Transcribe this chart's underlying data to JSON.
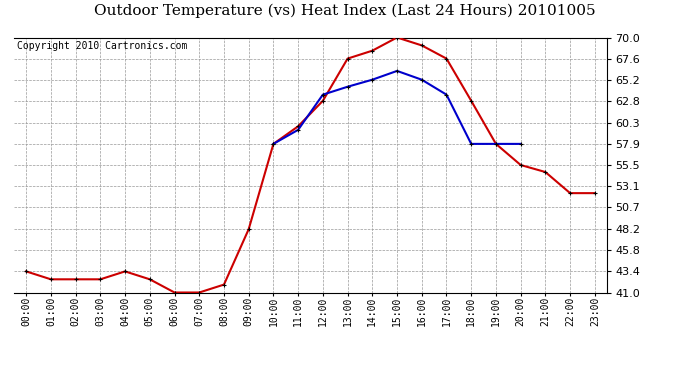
{
  "title": "Outdoor Temperature (vs) Heat Index (Last 24 Hours) 20101005",
  "copyright": "Copyright 2010 Cartronics.com",
  "hours": [
    "00:00",
    "01:00",
    "02:00",
    "03:00",
    "04:00",
    "05:00",
    "06:00",
    "07:00",
    "08:00",
    "09:00",
    "10:00",
    "11:00",
    "12:00",
    "13:00",
    "14:00",
    "15:00",
    "16:00",
    "17:00",
    "18:00",
    "19:00",
    "20:00",
    "21:00",
    "22:00",
    "23:00"
  ],
  "temp": [
    43.4,
    42.5,
    42.5,
    42.5,
    43.4,
    42.5,
    41.0,
    41.0,
    41.9,
    48.2,
    57.9,
    59.9,
    62.8,
    67.6,
    68.5,
    70.0,
    69.1,
    67.6,
    62.8,
    57.9,
    55.5,
    54.7,
    52.3,
    52.3
  ],
  "heat_index": [
    null,
    null,
    null,
    null,
    null,
    null,
    null,
    null,
    null,
    null,
    57.9,
    59.5,
    63.5,
    64.4,
    65.2,
    66.2,
    65.2,
    63.5,
    57.9,
    57.9,
    57.9,
    null,
    null,
    null
  ],
  "temp_color": "#cc0000",
  "heat_color": "#0000cc",
  "bg_color": "#ffffff",
  "grid_color": "#999999",
  "ylim": [
    41.0,
    70.0
  ],
  "yticks": [
    41.0,
    43.4,
    45.8,
    48.2,
    50.7,
    53.1,
    55.5,
    57.9,
    60.3,
    62.8,
    65.2,
    67.6,
    70.0
  ],
  "title_fontsize": 11,
  "copyright_fontsize": 7,
  "marker_size": 3.5,
  "linewidth": 1.5
}
